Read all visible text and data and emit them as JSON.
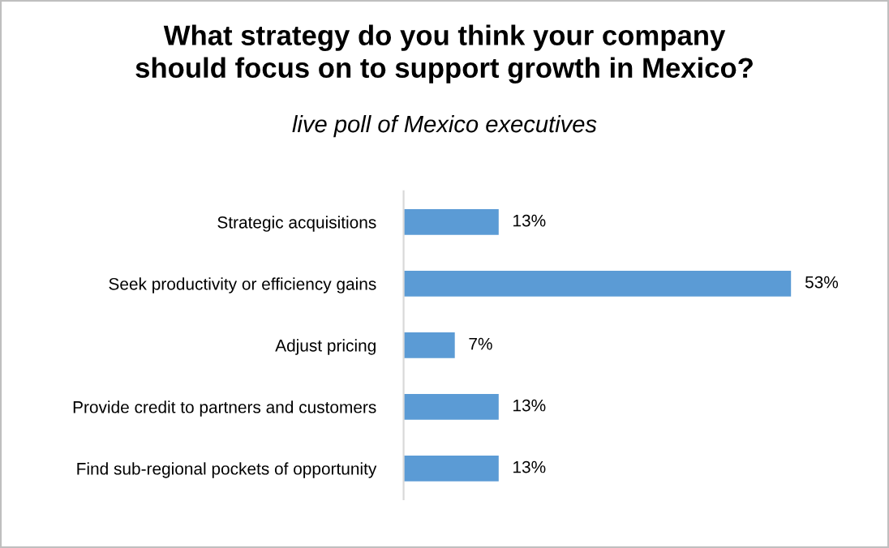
{
  "chart_data": {
    "type": "bar",
    "orientation": "horizontal",
    "title": "What strategy do you think your company\nshould focus on to support growth in Mexico?",
    "subtitle": "live poll of Mexico executives",
    "categories": [
      "Strategic acquisitions",
      "Seek productivity or efficiency gains",
      "Adjust pricing",
      "Provide credit to partners and customers",
      "Find sub-regional pockets of opportunity"
    ],
    "values": [
      13,
      53,
      7,
      13,
      13
    ],
    "value_labels": [
      "13%",
      "53%",
      "7%",
      "13%",
      "13%"
    ],
    "color": "#5b9bd5",
    "grid": false,
    "legend": false
  }
}
